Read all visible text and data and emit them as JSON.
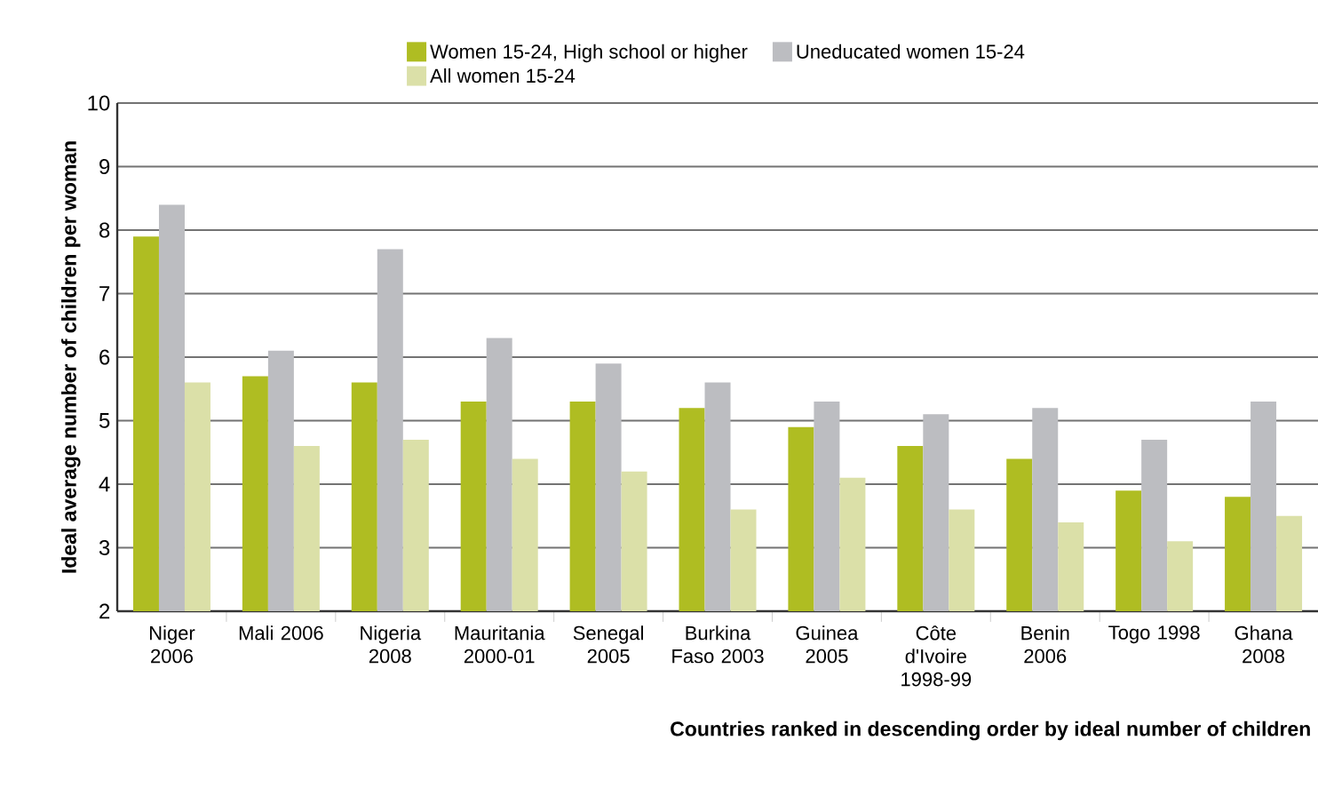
{
  "chart_data": {
    "type": "bar",
    "xlabel": "Countries ranked in descending order by ideal number of children",
    "ylabel": "Ideal average number of children per woman",
    "categories": [
      "Niger 2006",
      "Mali 2006",
      "Nigeria 2008",
      "Mauritania 2000-01",
      "Senegal 2005",
      "Burkina Faso 2003",
      "Guinea 2005",
      "Côte d'Ivoire 1998-99",
      "Benin 2006",
      "Togo 1998",
      "Ghana 2008"
    ],
    "series": [
      {
        "name": "Women 15-24, High school or higher",
        "color": "#afbd22",
        "values": [
          7.9,
          5.7,
          5.6,
          5.3,
          5.3,
          5.2,
          4.9,
          4.6,
          4.4,
          3.9,
          3.8
        ]
      },
      {
        "name": "Uneducated women 15-24",
        "color": "#bcbdc1",
        "values": [
          8.4,
          6.1,
          7.7,
          6.3,
          5.9,
          5.6,
          5.3,
          5.1,
          5.2,
          4.7,
          5.3
        ]
      },
      {
        "name": "All women 15-24",
        "color": "#dbe0a8",
        "values": [
          5.6,
          4.6,
          4.7,
          4.4,
          4.2,
          3.6,
          4.1,
          3.6,
          3.4,
          3.1,
          3.5
        ]
      }
    ],
    "ylim": [
      2,
      10
    ],
    "yticks": [
      2,
      3,
      4,
      5,
      6,
      7,
      8,
      9,
      10
    ],
    "grid": "y",
    "legend": "top"
  }
}
